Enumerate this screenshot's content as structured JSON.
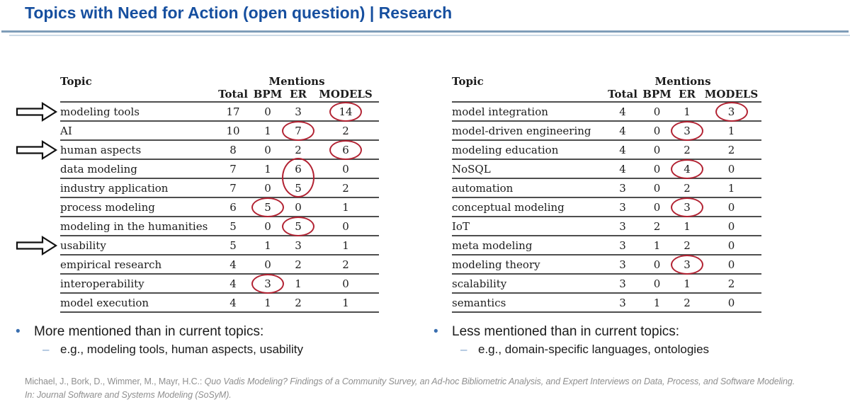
{
  "title": "Topics with Need for Action (open question) | Research",
  "glyphs": {
    "bullet": "•",
    "dash": "–"
  },
  "colors": {
    "title_blue": "#164f9f",
    "underline_blue": "#7f9db8",
    "underline_light_blue": "#ccdae6",
    "circle_red": "#b22232",
    "bullet_dot_blue": "#3a6fb0",
    "bullet_dash_blue": "#7fa3cc",
    "citation_gray": "#8f8f8f"
  },
  "tables": [
    {
      "headers": {
        "topic": "Topic",
        "mentions": "Mentions",
        "cols": [
          "Total",
          "BPM",
          "ER",
          "MODELS"
        ]
      },
      "rows": [
        {
          "topic": "modeling tools",
          "total": 17,
          "bpm": 0,
          "er": 3,
          "models": 14,
          "circle": "models",
          "arrow": true
        },
        {
          "topic": "AI",
          "total": 10,
          "bpm": 1,
          "er": 7,
          "models": 2,
          "circle": "er"
        },
        {
          "topic": "human aspects",
          "total": 8,
          "bpm": 0,
          "er": 2,
          "models": 6,
          "circle": "models",
          "arrow": true
        },
        {
          "topic": "data modeling",
          "total": 7,
          "bpm": 1,
          "er": 6,
          "models": 0,
          "circle": "er",
          "circle_span": 2
        },
        {
          "topic": "industry application",
          "total": 7,
          "bpm": 0,
          "er": 5,
          "models": 2
        },
        {
          "topic": "process modeling",
          "total": 6,
          "bpm": 5,
          "er": 0,
          "models": 1,
          "circle": "bpm"
        },
        {
          "topic": "modeling in the humanities",
          "total": 5,
          "bpm": 0,
          "er": 5,
          "models": 0,
          "circle": "er"
        },
        {
          "topic": "usability",
          "total": 5,
          "bpm": 1,
          "er": 3,
          "models": 1,
          "arrow": true
        },
        {
          "topic": "empirical research",
          "total": 4,
          "bpm": 0,
          "er": 2,
          "models": 2
        },
        {
          "topic": "interoperability",
          "total": 4,
          "bpm": 3,
          "er": 1,
          "models": 0,
          "circle": "bpm"
        },
        {
          "topic": "model execution",
          "total": 4,
          "bpm": 1,
          "er": 2,
          "models": 1
        }
      ]
    },
    {
      "headers": {
        "topic": "Topic",
        "mentions": "Mentions",
        "cols": [
          "Total",
          "BPM",
          "ER",
          "MODELS"
        ]
      },
      "rows": [
        {
          "topic": "model integration",
          "total": 4,
          "bpm": 0,
          "er": 1,
          "models": 3,
          "circle": "models"
        },
        {
          "topic": "model-driven engineering",
          "total": 4,
          "bpm": 0,
          "er": 3,
          "models": 1,
          "circle": "er"
        },
        {
          "topic": "modeling education",
          "total": 4,
          "bpm": 0,
          "er": 2,
          "models": 2
        },
        {
          "topic": "NoSQL",
          "total": 4,
          "bpm": 0,
          "er": 4,
          "models": 0,
          "circle": "er"
        },
        {
          "topic": "automation",
          "total": 3,
          "bpm": 0,
          "er": 2,
          "models": 1
        },
        {
          "topic": "conceptual modeling",
          "total": 3,
          "bpm": 0,
          "er": 3,
          "models": 0,
          "circle": "er"
        },
        {
          "topic": "IoT",
          "total": 3,
          "bpm": 2,
          "er": 1,
          "models": 0
        },
        {
          "topic": "meta modeling",
          "total": 3,
          "bpm": 1,
          "er": 2,
          "models": 0
        },
        {
          "topic": "modeling theory",
          "total": 3,
          "bpm": 0,
          "er": 3,
          "models": 0,
          "circle": "er"
        },
        {
          "topic": "scalability",
          "total": 3,
          "bpm": 0,
          "er": 1,
          "models": 2
        },
        {
          "topic": "semantics",
          "total": 3,
          "bpm": 1,
          "er": 2,
          "models": 0
        }
      ]
    }
  ],
  "bullets": [
    {
      "main": "More mentioned than in current topics:",
      "sub": "e.g., modeling tools, human aspects, usability"
    },
    {
      "main": "Less mentioned than in current topics:",
      "sub": "e.g., domain-specific languages, ontologies"
    }
  ],
  "citation": {
    "authors": "Michael, J., Bork, D., Wimmer, M., Mayr, H.C.: ",
    "work": "Quo Vadis Modeling? Findings of a Community Survey, an Ad-hoc Bibliometric Analysis, and Expert Interviews on Data, Process, and Software Modeling.",
    "line2": "In: Journal Software and Systems Modeling (SoSyM)."
  }
}
